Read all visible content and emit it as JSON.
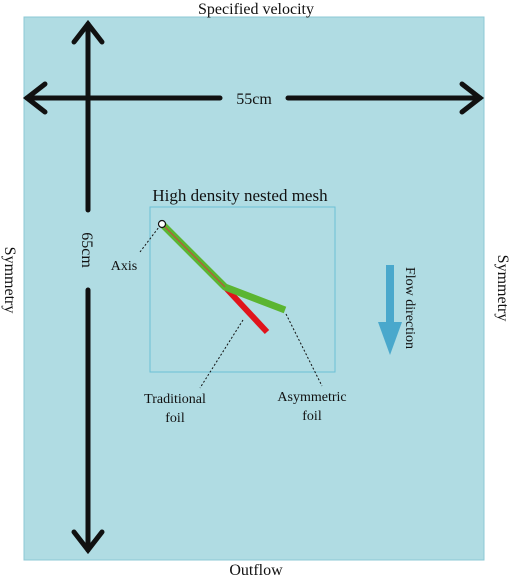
{
  "labels": {
    "top": "Specified velocity",
    "bottom": "Outflow",
    "left": "Symmetry",
    "right": "Symmetry"
  },
  "dimensions": {
    "width": "55cm",
    "height": "65cm"
  },
  "mesh": {
    "title": "High density nested  mesh"
  },
  "annotations": {
    "axis": "Axis",
    "traditional": [
      "Traditional",
      "foil"
    ],
    "asymmetric": [
      "Asymmetric",
      "foil"
    ],
    "flow": "Flow direction"
  }
}
